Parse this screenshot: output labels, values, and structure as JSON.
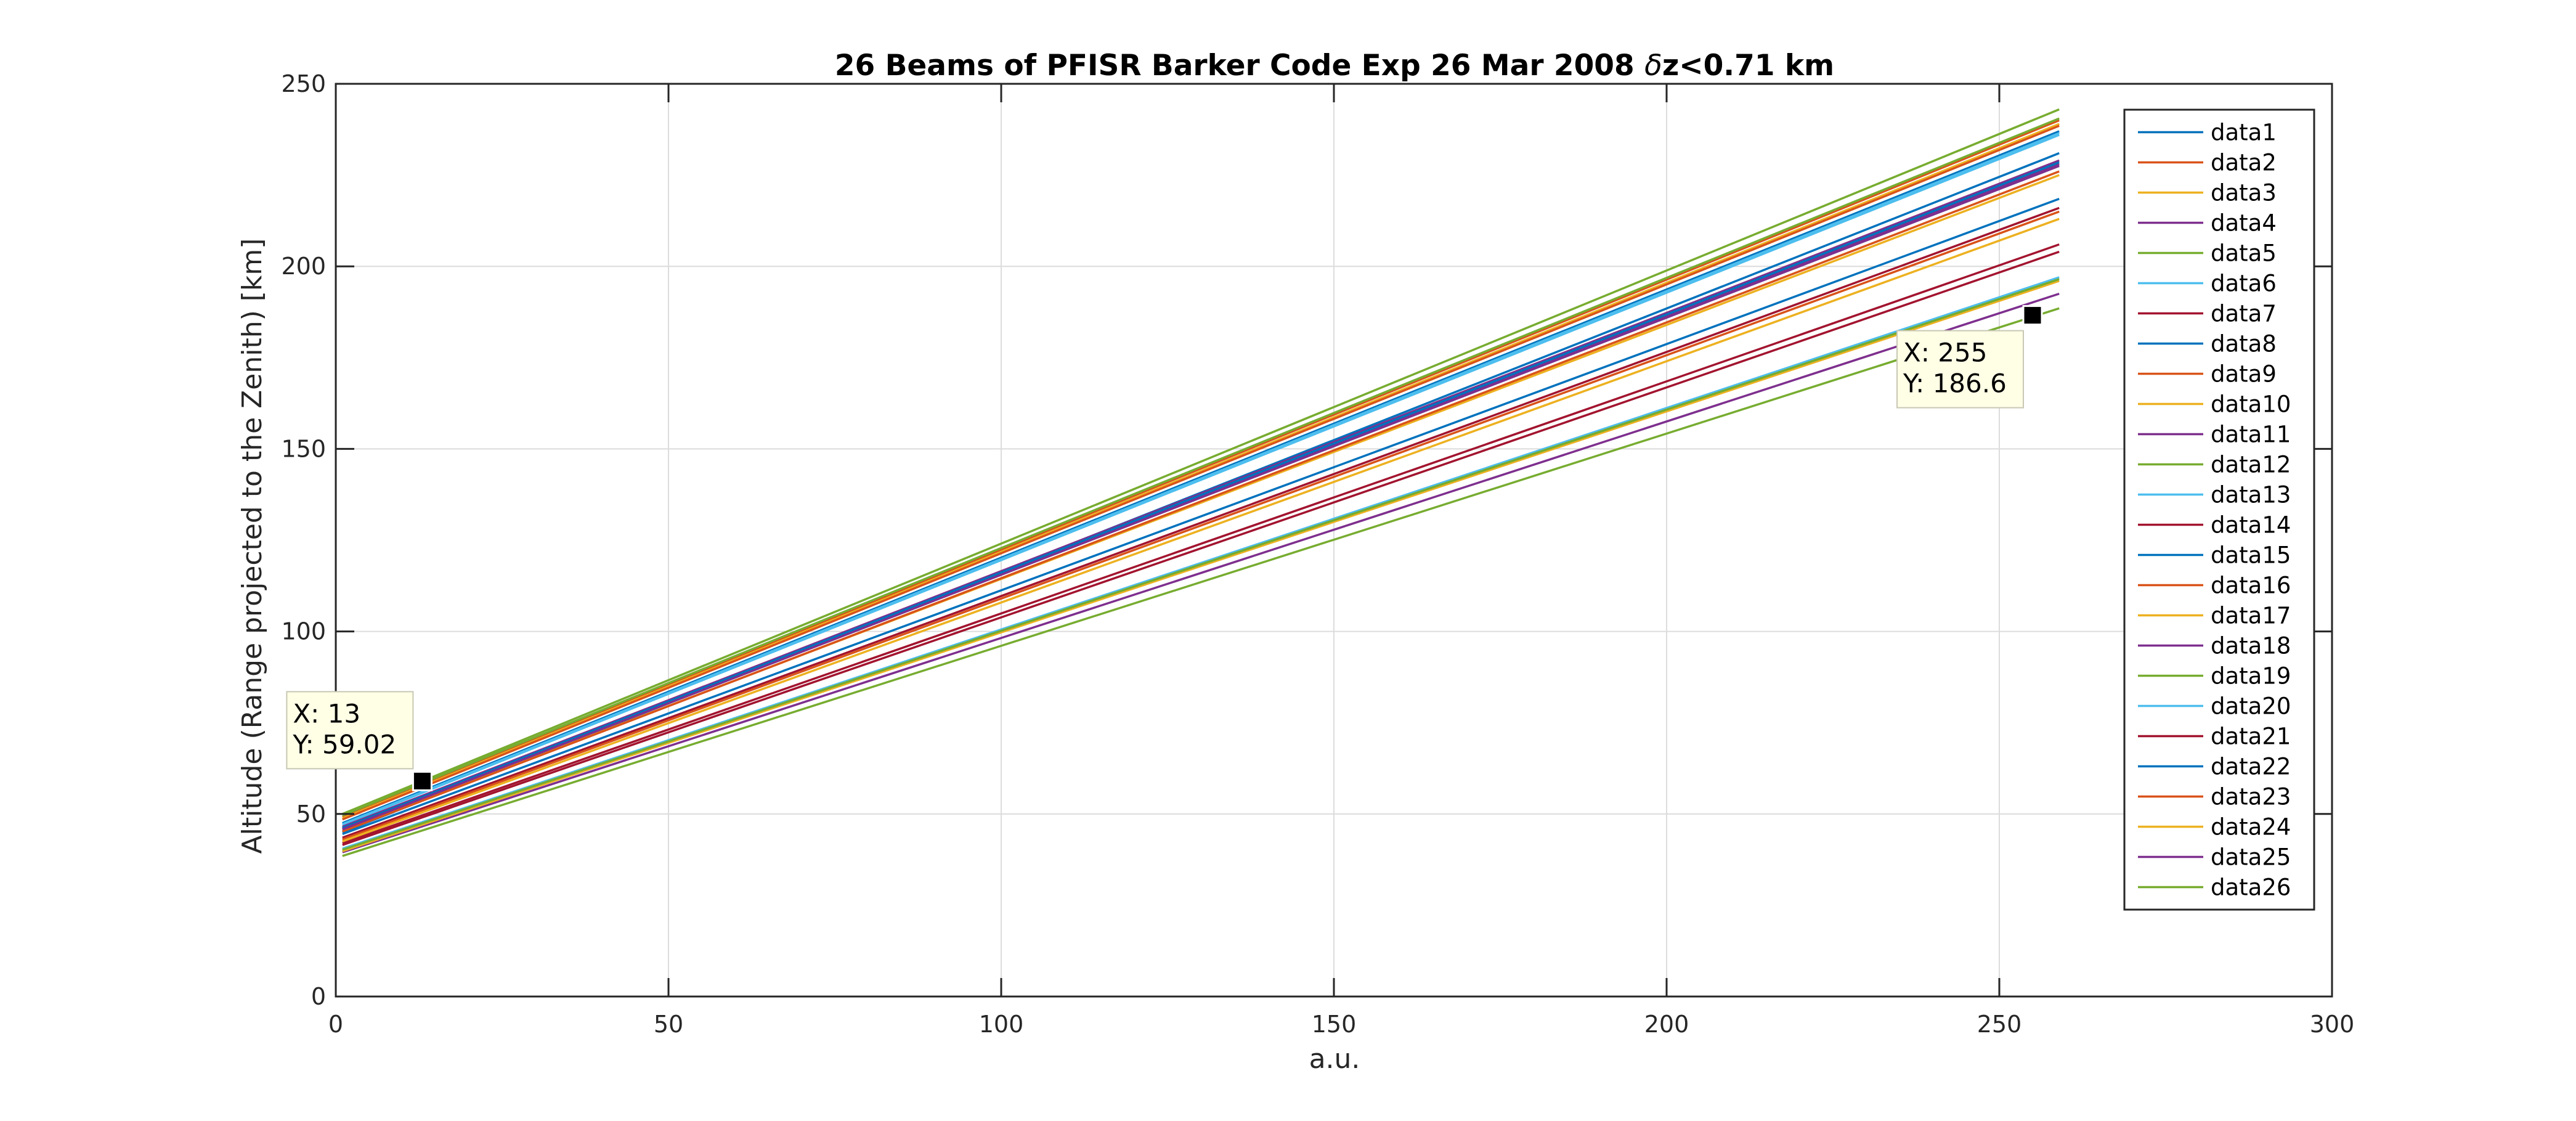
{
  "chart_data": {
    "type": "line",
    "title_main": "26 Beams of PFISR Barker Code Exp 26 Mar 2008 ",
    "title_delta": "δ",
    "title_tail": "z<0.71 km",
    "xlabel": "a.u.",
    "ylabel": "Altitude (Range projected to the Zenith) [km]",
    "xlim": [
      0,
      300
    ],
    "ylim": [
      0,
      250
    ],
    "xticks": [
      0,
      50,
      100,
      150,
      200,
      250,
      300
    ],
    "yticks": [
      0,
      50,
      100,
      150,
      200,
      250
    ],
    "grid": true,
    "legend_position": "top-right",
    "series": [
      {
        "name": "data1",
        "color": "#0072BD",
        "x": [
          1,
          259
        ],
        "y": [
          47.5,
          237.0
        ]
      },
      {
        "name": "data2",
        "color": "#D95319",
        "x": [
          1,
          259
        ],
        "y": [
          49.2,
          240.0
        ]
      },
      {
        "name": "data3",
        "color": "#EDB120",
        "x": [
          1,
          259
        ],
        "y": [
          48.8,
          239.0
        ]
      },
      {
        "name": "data4",
        "color": "#7E2F8E",
        "x": [
          1,
          259
        ],
        "y": [
          46.0,
          228.0
        ]
      },
      {
        "name": "data5",
        "color": "#77AC30",
        "x": [
          1,
          259
        ],
        "y": [
          49.6,
          240.5
        ]
      },
      {
        "name": "data6",
        "color": "#4DBEEE",
        "x": [
          1,
          259
        ],
        "y": [
          47.0,
          236.0
        ]
      },
      {
        "name": "data7",
        "color": "#A2142F",
        "x": [
          1,
          259
        ],
        "y": [
          43.5,
          216.0
        ]
      },
      {
        "name": "data8",
        "color": "#0072BD",
        "x": [
          1,
          259
        ],
        "y": [
          45.0,
          231.0
        ]
      },
      {
        "name": "data9",
        "color": "#D95319",
        "x": [
          1,
          259
        ],
        "y": [
          48.5,
          238.5
        ]
      },
      {
        "name": "data10",
        "color": "#EDB120",
        "x": [
          1,
          259
        ],
        "y": [
          45.5,
          225.0
        ]
      },
      {
        "name": "data11",
        "color": "#7E2F8E",
        "x": [
          1,
          259
        ],
        "y": [
          46.5,
          229.0
        ]
      },
      {
        "name": "data12",
        "color": "#77AC30",
        "x": [
          1,
          259
        ],
        "y": [
          50.0,
          243.0
        ]
      },
      {
        "name": "data13",
        "color": "#4DBEEE",
        "x": [
          1,
          259
        ],
        "y": [
          40.5,
          197.0
        ]
      },
      {
        "name": "data14",
        "color": "#A2142F",
        "x": [
          1,
          259
        ],
        "y": [
          42.0,
          206.0
        ]
      },
      {
        "name": "data15",
        "color": "#0072BD",
        "x": [
          1,
          259
        ],
        "y": [
          44.5,
          218.5
        ]
      },
      {
        "name": "data16",
        "color": "#D95319",
        "x": [
          1,
          259
        ],
        "y": [
          43.0,
          215.0
        ]
      },
      {
        "name": "data17",
        "color": "#EDB120",
        "x": [
          1,
          259
        ],
        "y": [
          42.5,
          213.0
        ]
      },
      {
        "name": "data18",
        "color": "#7E2F8E",
        "x": [
          1,
          259
        ],
        "y": [
          39.5,
          192.5
        ]
      },
      {
        "name": "data19",
        "color": "#77AC30",
        "x": [
          1,
          259
        ],
        "y": [
          38.5,
          188.5
        ]
      },
      {
        "name": "data20",
        "color": "#4DBEEE",
        "x": [
          1,
          259
        ],
        "y": [
          47.2,
          236.5
        ]
      },
      {
        "name": "data21",
        "color": "#A2142F",
        "x": [
          1,
          259
        ],
        "y": [
          41.5,
          204.0
        ]
      },
      {
        "name": "data22",
        "color": "#0072BD",
        "x": [
          1,
          259
        ],
        "y": [
          46.2,
          228.5
        ]
      },
      {
        "name": "data23",
        "color": "#D95319",
        "x": [
          1,
          259
        ],
        "y": [
          45.2,
          226.0
        ]
      },
      {
        "name": "data24",
        "color": "#EDB120",
        "x": [
          1,
          259
        ],
        "y": [
          39.8,
          196.0
        ]
      },
      {
        "name": "data25",
        "color": "#7E2F8E",
        "x": [
          1,
          259
        ],
        "y": [
          45.8,
          227.5
        ]
      },
      {
        "name": "data26",
        "color": "#77AC30",
        "x": [
          1,
          259
        ],
        "y": [
          40.2,
          196.5
        ]
      }
    ],
    "datatips": [
      {
        "x": 13,
        "y": 59.02,
        "x_text": "X: 13",
        "y_text": "Y: 59.02",
        "box_side": "above-left"
      },
      {
        "x": 255,
        "y": 186.6,
        "x_text": "X: 255",
        "y_text": "Y: 186.6",
        "box_side": "below-left"
      }
    ]
  }
}
